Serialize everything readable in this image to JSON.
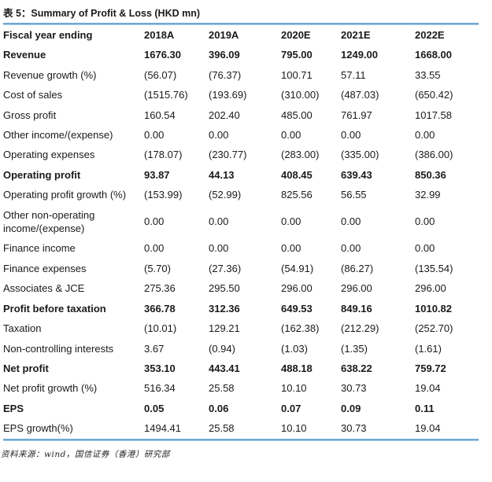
{
  "title": "表 5：Summary of Profit & Loss (HKD mn)",
  "source_note": "资料来源：wind，国信证券（香港）研究部",
  "accent_color": "#5e9ccb",
  "table": {
    "columns": [
      "Fiscal year ending",
      "2018A",
      "2019A",
      "2020E",
      "2021E",
      "2022E"
    ],
    "rows": [
      {
        "label": "Revenue",
        "bold": true,
        "values": [
          "1676.30",
          "396.09",
          "795.00",
          "1249.00",
          "1668.00"
        ]
      },
      {
        "label": "Revenue growth (%)",
        "bold": false,
        "values": [
          "(56.07)",
          "(76.37)",
          "100.71",
          "57.11",
          "33.55"
        ]
      },
      {
        "label": "Cost of sales",
        "bold": false,
        "values": [
          "(1515.76)",
          "(193.69)",
          "(310.00)",
          "(487.03)",
          "(650.42)"
        ]
      },
      {
        "label": "Gross profit",
        "bold": false,
        "values": [
          "160.54",
          "202.40",
          "485.00",
          "761.97",
          "1017.58"
        ]
      },
      {
        "label": "Other income/(expense)",
        "bold": false,
        "values": [
          "0.00",
          "0.00",
          "0.00",
          "0.00",
          "0.00"
        ]
      },
      {
        "label": "Operating expenses",
        "bold": false,
        "values": [
          "(178.07)",
          "(230.77)",
          "(283.00)",
          "(335.00)",
          "(386.00)"
        ]
      },
      {
        "label": "Operating profit",
        "bold": true,
        "values": [
          "93.87",
          "44.13",
          "408.45",
          "639.43",
          "850.36"
        ]
      },
      {
        "label": "Operating profit growth (%)",
        "bold": false,
        "values": [
          "(153.99)",
          "(52.99)",
          "825.56",
          "56.55",
          "32.99"
        ]
      },
      {
        "label": "Other non-operating income/(expense)",
        "bold": false,
        "values": [
          "0.00",
          "0.00",
          "0.00",
          "0.00",
          "0.00"
        ]
      },
      {
        "label": "Finance income",
        "bold": false,
        "values": [
          "0.00",
          "0.00",
          "0.00",
          "0.00",
          "0.00"
        ]
      },
      {
        "label": "Finance expenses",
        "bold": false,
        "values": [
          "(5.70)",
          "(27.36)",
          "(54.91)",
          "(86.27)",
          "(135.54)"
        ]
      },
      {
        "label": "Associates & JCE",
        "bold": false,
        "values": [
          "275.36",
          "295.50",
          "296.00",
          "296.00",
          "296.00"
        ]
      },
      {
        "label": "Profit before taxation",
        "bold": true,
        "values": [
          "366.78",
          "312.36",
          "649.53",
          "849.16",
          "1010.82"
        ]
      },
      {
        "label": "Taxation",
        "bold": false,
        "values": [
          "(10.01)",
          "129.21",
          "(162.38)",
          "(212.29)",
          "(252.70)"
        ]
      },
      {
        "label": "Non-controlling interests",
        "bold": false,
        "values": [
          "3.67",
          "(0.94)",
          "(1.03)",
          "(1.35)",
          "(1.61)"
        ]
      },
      {
        "label": "Net profit",
        "bold": true,
        "values": [
          "353.10",
          "443.41",
          "488.18",
          "638.22",
          "759.72"
        ]
      },
      {
        "label": "Net profit growth (%)",
        "bold": false,
        "values": [
          "516.34",
          "25.58",
          "10.10",
          "30.73",
          "19.04"
        ]
      },
      {
        "label": "EPS",
        "bold": true,
        "values": [
          "0.05",
          "0.06",
          "0.07",
          "0.09",
          "0.11"
        ]
      },
      {
        "label": "EPS growth(%)",
        "bold": false,
        "values": [
          "1494.41",
          "25.58",
          "10.10",
          "30.73",
          "19.04"
        ]
      }
    ]
  }
}
